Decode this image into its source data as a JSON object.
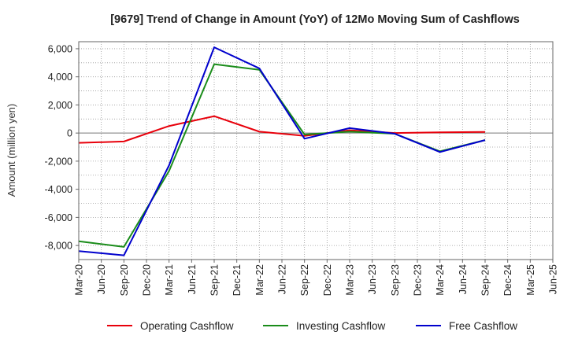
{
  "chart_data": {
    "type": "line",
    "title": "[9679]  Trend of Change in Amount (YoY) of 12Mo Moving Sum of Cashflows",
    "xlabel": "",
    "ylabel": "Amount (million yen)",
    "ylim": [
      -9000,
      6500
    ],
    "yticks": [
      6000,
      4000,
      2000,
      0,
      -2000,
      -4000,
      -6000,
      -8000
    ],
    "ytick_labels": [
      "6,000",
      "4,000",
      "2,000",
      "0",
      "-2,000",
      "-4,000",
      "-6,000",
      "-8,000"
    ],
    "categories": [
      "Mar-20",
      "Jun-20",
      "Sep-20",
      "Dec-20",
      "Mar-21",
      "Jun-21",
      "Sep-21",
      "Dec-21",
      "Mar-22",
      "Jun-22",
      "Sep-22",
      "Dec-22",
      "Mar-23",
      "Jun-23",
      "Sep-23",
      "Dec-23",
      "Mar-24",
      "Jun-24",
      "Sep-24",
      "Dec-24",
      "Mar-25",
      "Jun-25"
    ],
    "grid": true,
    "legend_position": "bottom",
    "series": [
      {
        "name": "Operating Cashflow",
        "color": "#e8000b",
        "values": [
          -700,
          null,
          -600,
          null,
          500,
          null,
          1200,
          null,
          100,
          null,
          -200,
          null,
          200,
          null,
          0,
          null,
          50,
          null,
          80,
          null,
          null,
          null
        ]
      },
      {
        "name": "Investing Cashflow",
        "color": "#1a8c1a",
        "values": [
          -7700,
          null,
          -8100,
          null,
          -2700,
          null,
          4900,
          null,
          4500,
          null,
          -100,
          null,
          100,
          null,
          -50,
          null,
          -1300,
          null,
          -500,
          null,
          null,
          null
        ]
      },
      {
        "name": "Free Cashflow",
        "color": "#0000cd",
        "values": [
          -8400,
          null,
          -8700,
          null,
          -2300,
          null,
          6100,
          null,
          4600,
          null,
          -400,
          null,
          350,
          null,
          -50,
          null,
          -1350,
          null,
          -500,
          null,
          null,
          null
        ]
      }
    ]
  }
}
